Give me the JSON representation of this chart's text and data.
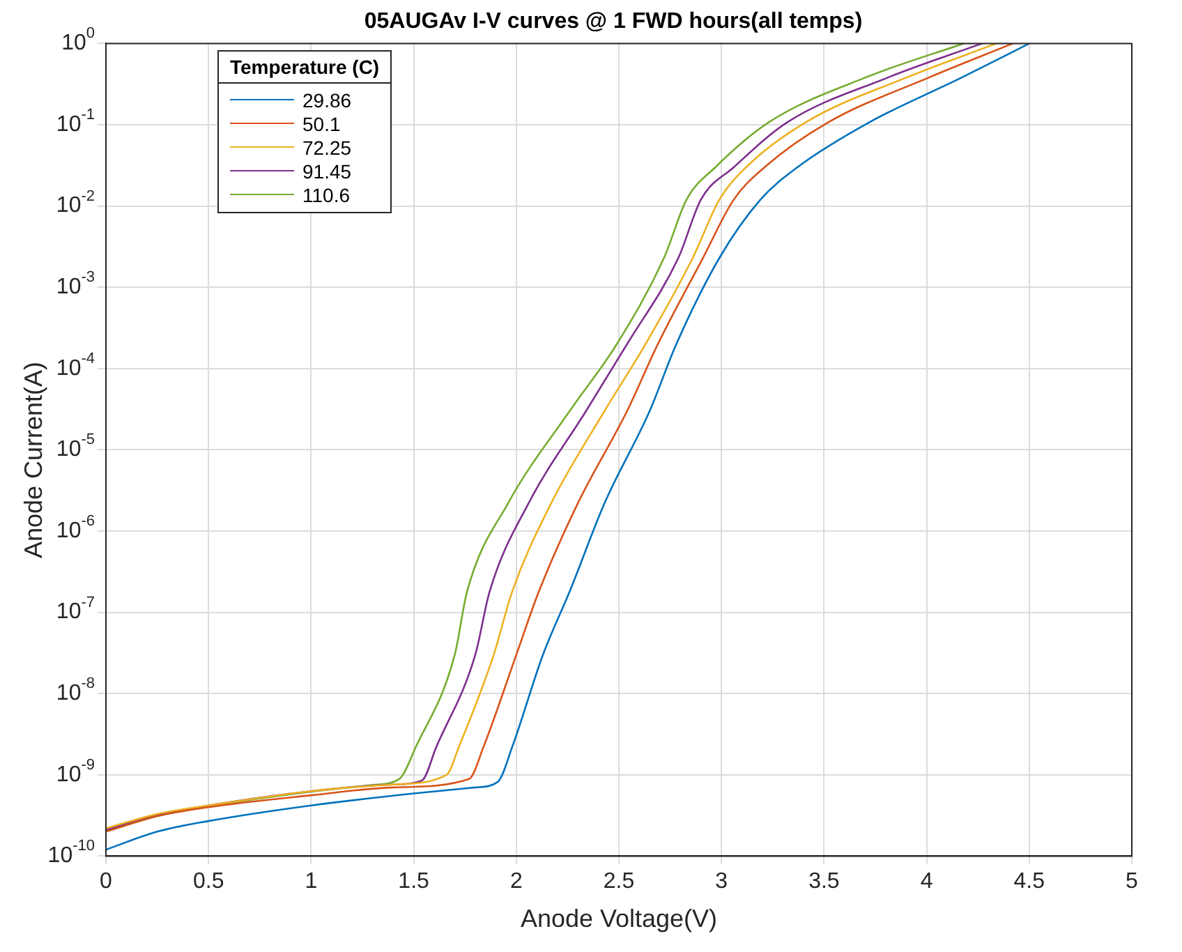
{
  "chart_data": {
    "type": "line",
    "title": "05AUGAv I-V curves @ 1 FWD hours(all temps)",
    "xlabel": "Anode Voltage(V)",
    "ylabel": "Anode Current(A)",
    "legend_title": "Temperature (C)",
    "xlim": [
      0,
      5
    ],
    "xticks": [
      0,
      0.5,
      1,
      1.5,
      2,
      2.5,
      3,
      3.5,
      4,
      4.5,
      5
    ],
    "ylim": [
      1e-10,
      1
    ],
    "log": "y",
    "yticks": [
      {
        "value": 1e-10,
        "label": "10$^{-10}$"
      },
      {
        "value": 1e-09,
        "label": "10$^{-9}$"
      },
      {
        "value": 1e-08,
        "label": "10$^{-8}$"
      },
      {
        "value": 1e-07,
        "label": "10$^{-7}$"
      },
      {
        "value": 1e-06,
        "label": "10$^{-6}$"
      },
      {
        "value": 1e-05,
        "label": "10$^{-5}$"
      },
      {
        "value": 0.0001,
        "label": "10$^{-4}$"
      },
      {
        "value": 0.001,
        "label": "10$^{-3}$"
      },
      {
        "value": 0.01,
        "label": "10$^{-2}$"
      },
      {
        "value": 0.1,
        "label": "10$^{-1}$"
      },
      {
        "value": 1,
        "label": "10$^{0}$"
      }
    ],
    "grid": true,
    "legend": "top left",
    "marker": "none",
    "line_style": "solid",
    "series": [
      {
        "name": "29.86",
        "color": "#0072bd",
        "x": [
          0,
          0.25,
          0.5,
          1,
          1.5,
          1.8,
          1.91,
          1.98,
          2.13,
          2.26,
          2.43,
          2.65,
          2.78,
          2.99,
          3.19,
          3.37,
          3.72,
          4.17,
          4.5
        ],
        "values": [
          1.2e-10,
          2e-10,
          2.7e-10,
          4.2e-10,
          5.9e-10,
          7e-10,
          8.2e-10,
          2.2e-09,
          3e-08,
          1.8e-07,
          2.2e-06,
          3e-05,
          0.0002,
          0.0023,
          0.012,
          0.03,
          0.107,
          0.38,
          1
        ]
      },
      {
        "name": "50.1",
        "color": "#d95319",
        "x": [
          0,
          0.25,
          0.5,
          1,
          1.4,
          1.77,
          1.84,
          2.0,
          2.11,
          2.3,
          2.54,
          2.69,
          2.91,
          3.06,
          3.21,
          3.52,
          4.01,
          4.42
        ],
        "values": [
          2e-10,
          3.1e-10,
          4e-10,
          5.6e-10,
          7e-10,
          8.9e-10,
          2.2e-09,
          3e-08,
          1.8e-07,
          2.2e-06,
          3e-05,
          0.0002,
          0.0023,
          0.012,
          0.03,
          0.107,
          0.38,
          1
        ]
      },
      {
        "name": "72.25",
        "color": "#edb120",
        "x": [
          0,
          0.25,
          0.5,
          1,
          1.4,
          1.66,
          1.72,
          1.89,
          1.98,
          2.17,
          2.43,
          2.63,
          2.86,
          2.99,
          3.12,
          3.41,
          3.9,
          4.34
        ],
        "values": [
          2.2e-10,
          3.3e-10,
          4.2e-10,
          6.3e-10,
          7.6e-10,
          1e-09,
          2.2e-09,
          3e-08,
          1.8e-07,
          2.2e-06,
          3e-05,
          0.0002,
          0.0023,
          0.012,
          0.03,
          0.107,
          0.38,
          1
        ]
      },
      {
        "name": "91.45",
        "color": "#7e2f8e",
        "x": [
          0,
          0.25,
          0.5,
          1,
          1.4,
          1.54,
          1.61,
          1.8,
          1.87,
          2.06,
          2.34,
          2.54,
          2.79,
          2.9,
          3.06,
          3.32,
          3.81,
          4.27
        ],
        "values": [
          2.1e-10,
          3.2e-10,
          4.2e-10,
          6.3e-10,
          7.6e-10,
          8.5e-10,
          2.2e-09,
          3e-08,
          1.8e-07,
          2.2e-06,
          3e-05,
          0.0002,
          0.0023,
          0.012,
          0.03,
          0.107,
          0.38,
          1
        ]
      },
      {
        "name": "110.6",
        "color": "#77ac30",
        "x": [
          0,
          0.25,
          0.5,
          1,
          1.3,
          1.43,
          1.51,
          1.7,
          1.76,
          1.96,
          2.26,
          2.49,
          2.72,
          2.83,
          2.97,
          3.23,
          3.7,
          4.18
        ],
        "values": [
          2e-10,
          3.1e-10,
          4.1e-10,
          6.2e-10,
          7.5e-10,
          8.9e-10,
          2.2e-09,
          3e-08,
          1.8e-07,
          2.2e-06,
          3e-05,
          0.0002,
          0.0023,
          0.012,
          0.03,
          0.107,
          0.38,
          1
        ]
      }
    ]
  }
}
